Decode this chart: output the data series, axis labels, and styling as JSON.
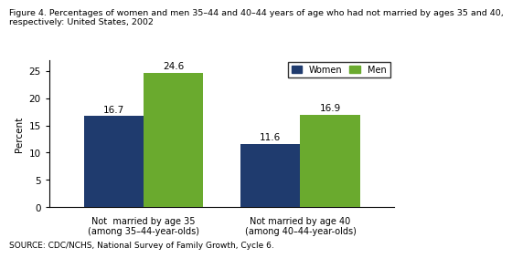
{
  "title_line1": "Figure 4. Percentages of women and men 35–44 and 40–44 years of age who had not married by ages 35 and 40,",
  "title_line2": "respectively: United States, 2002",
  "source": "SOURCE: CDC/NCHS, National Survey of Family Growth, Cycle 6.",
  "categories": [
    "Not  married by age 35\n(among 35–44-year-olds)",
    "Not married by age 40\n(among 40–44-year-olds)"
  ],
  "women_values": [
    16.7,
    11.6
  ],
  "men_values": [
    24.6,
    16.9
  ],
  "women_color": "#1f3b6e",
  "men_color": "#6aaa2e",
  "ylabel": "Percent",
  "ylim": [
    0,
    27
  ],
  "yticks": [
    0,
    5,
    10,
    15,
    20,
    25
  ],
  "legend_labels": [
    "Women",
    "Men"
  ],
  "bar_width": 0.38,
  "title_fontsize": 6.8,
  "label_fontsize": 7.5,
  "tick_fontsize": 7.5,
  "source_fontsize": 6.5,
  "value_fontsize": 7.5
}
